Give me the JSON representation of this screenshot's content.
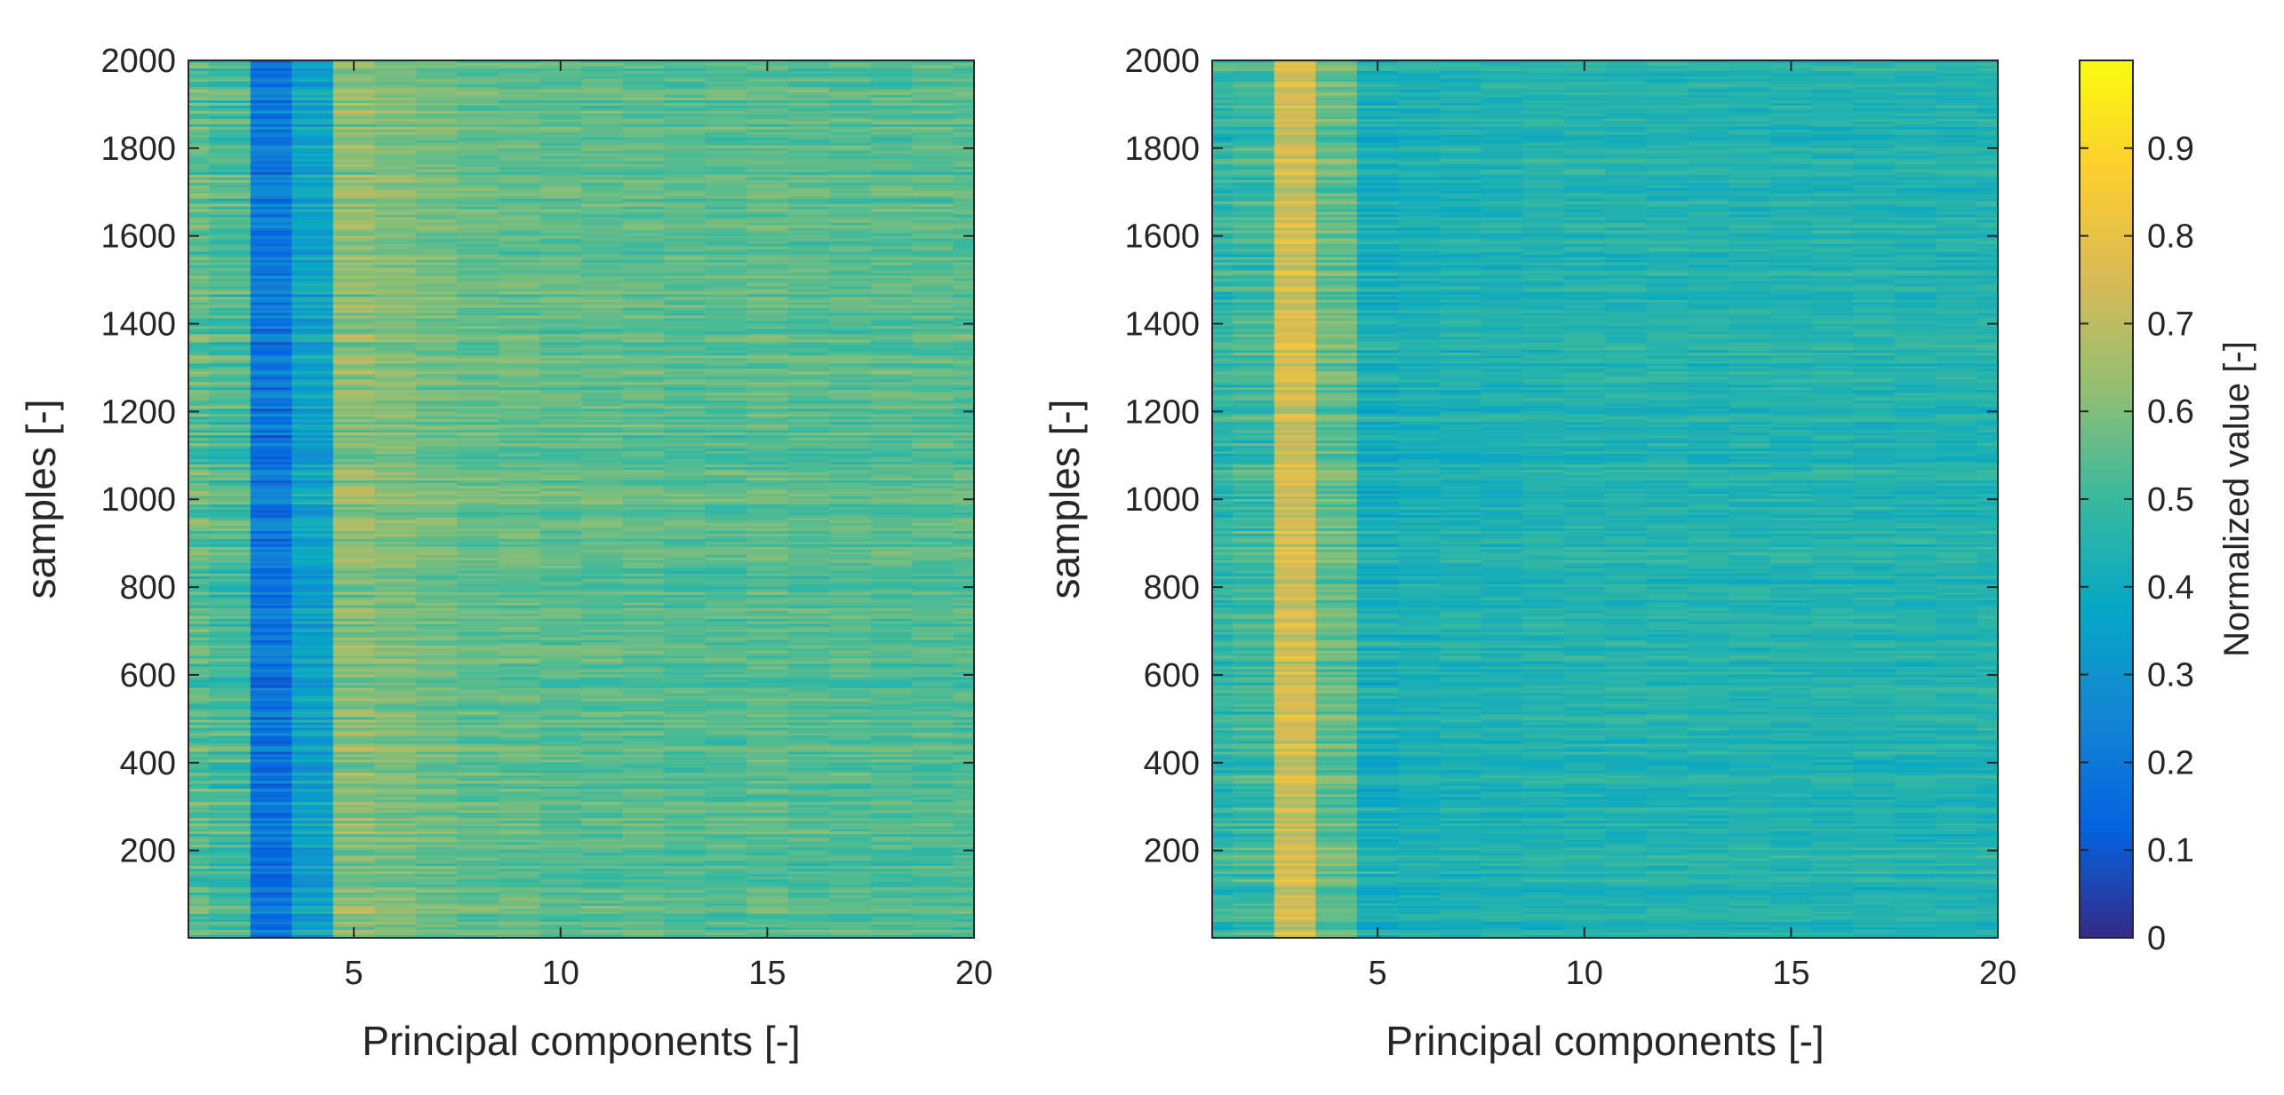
{
  "chart_data": [
    {
      "type": "heatmap",
      "title": "",
      "xlabel": "Principal components [-]",
      "ylabel": "samples [-]",
      "xlim": [
        1,
        20
      ],
      "ylim": [
        1,
        2000
      ],
      "xticks": [
        5,
        10,
        15,
        20
      ],
      "yticks": [
        200,
        400,
        600,
        800,
        1000,
        1200,
        1400,
        1600,
        1800,
        2000
      ],
      "rows": 2000,
      "columns": 20,
      "column_mean_values": [
        0.55,
        0.52,
        0.2,
        0.36,
        0.62,
        0.6,
        0.58,
        0.56,
        0.56,
        0.55,
        0.55,
        0.55,
        0.54,
        0.54,
        0.55,
        0.54,
        0.54,
        0.54,
        0.54,
        0.54
      ],
      "row_variation": 0.09,
      "grid": false
    },
    {
      "type": "heatmap",
      "title": "",
      "xlabel": "Principal components [-]",
      "ylabel": "samples [-]",
      "xlim": [
        1,
        20
      ],
      "ylim": [
        1,
        2000
      ],
      "xticks": [
        5,
        10,
        15,
        20
      ],
      "yticks": [
        200,
        400,
        600,
        800,
        1000,
        1200,
        1400,
        1600,
        1800,
        2000
      ],
      "rows": 2000,
      "columns": 20,
      "column_mean_values": [
        0.48,
        0.5,
        0.74,
        0.56,
        0.42,
        0.43,
        0.44,
        0.44,
        0.45,
        0.45,
        0.45,
        0.45,
        0.45,
        0.45,
        0.45,
        0.45,
        0.45,
        0.45,
        0.45,
        0.45
      ],
      "row_variation": 0.08,
      "grid": false
    }
  ],
  "colorbar": {
    "label": "Normalized value [-]",
    "colormap": "parula",
    "range": [
      0,
      1
    ],
    "ticks": [
      0,
      0.1,
      0.2,
      0.3,
      0.4,
      0.5,
      0.6,
      0.7,
      0.8,
      0.9
    ],
    "tick_labels": [
      "0",
      "0.1",
      "0.2",
      "0.3",
      "0.4",
      "0.5",
      "0.6",
      "0.7",
      "0.8",
      "0.9"
    ],
    "stops": [
      "#352a87",
      "#0363e1",
      "#1485d4",
      "#06a7c6",
      "#38b99e",
      "#92bf73",
      "#d9ba56",
      "#fcce2e",
      "#f9fb0e"
    ]
  }
}
